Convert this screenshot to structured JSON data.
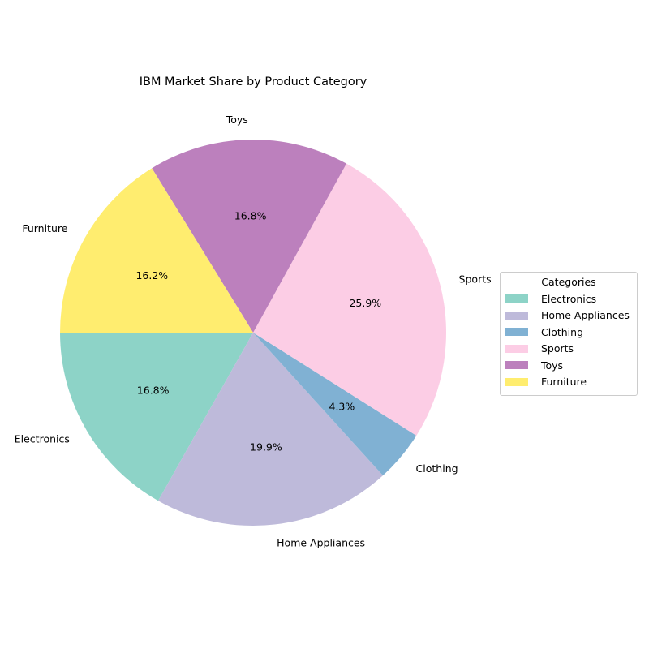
{
  "chart_data": {
    "type": "pie",
    "title": "IBM Market Share by Product Category",
    "categories": [
      "Electronics",
      "Home Appliances",
      "Clothing",
      "Sports",
      "Toys",
      "Furniture"
    ],
    "values": [
      16.8,
      19.9,
      4.3,
      25.9,
      16.8,
      16.2
    ],
    "value_labels": [
      "16.8%",
      "19.9%",
      "4.3%",
      "25.9%",
      "16.8%",
      "16.2%"
    ],
    "colors": [
      "#8dd3c7",
      "#bebada",
      "#80b1d3",
      "#fccde5",
      "#bc80bd",
      "#ffed6f"
    ],
    "start_angle_deg": 180,
    "direction": "counterclockwise",
    "legend": {
      "title": "Categories",
      "placement": "right"
    }
  }
}
